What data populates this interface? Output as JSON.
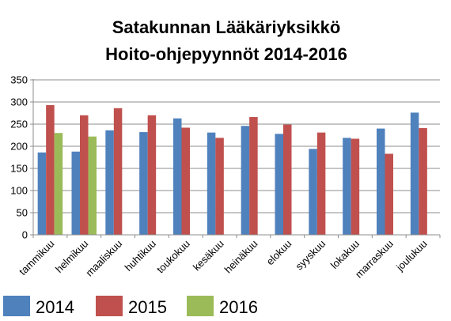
{
  "chart_data": {
    "type": "bar",
    "title": "Satakunnan Lääkäriyksikkö",
    "subtitle": "Hoito-ohjepyynnöt 2014-2016",
    "categories": [
      "tammikuu",
      "helmikuu",
      "maaliskuu",
      "huhtikuu",
      "toukokuu",
      "kesäkuu",
      "heinäkuu",
      "elokuu",
      "syyskuu",
      "lokakuu",
      "marraskuu",
      "joulukuu"
    ],
    "series": [
      {
        "name": "2014",
        "color": "#4f81bd",
        "values": [
          186,
          188,
          236,
          232,
          263,
          231,
          246,
          228,
          194,
          219,
          240,
          276
        ]
      },
      {
        "name": "2015",
        "color": "#c0504d",
        "values": [
          293,
          270,
          286,
          270,
          242,
          219,
          266,
          249,
          231,
          217,
          183,
          241
        ]
      },
      {
        "name": "2016",
        "color": "#9bbb59",
        "values": [
          230,
          222,
          null,
          null,
          null,
          null,
          null,
          null,
          null,
          null,
          null,
          null
        ]
      }
    ],
    "ylim": [
      0,
      350
    ],
    "yticks": [
      0,
      50,
      100,
      150,
      200,
      250,
      300,
      350
    ],
    "grid": true,
    "legend_position": "bottom-left"
  }
}
